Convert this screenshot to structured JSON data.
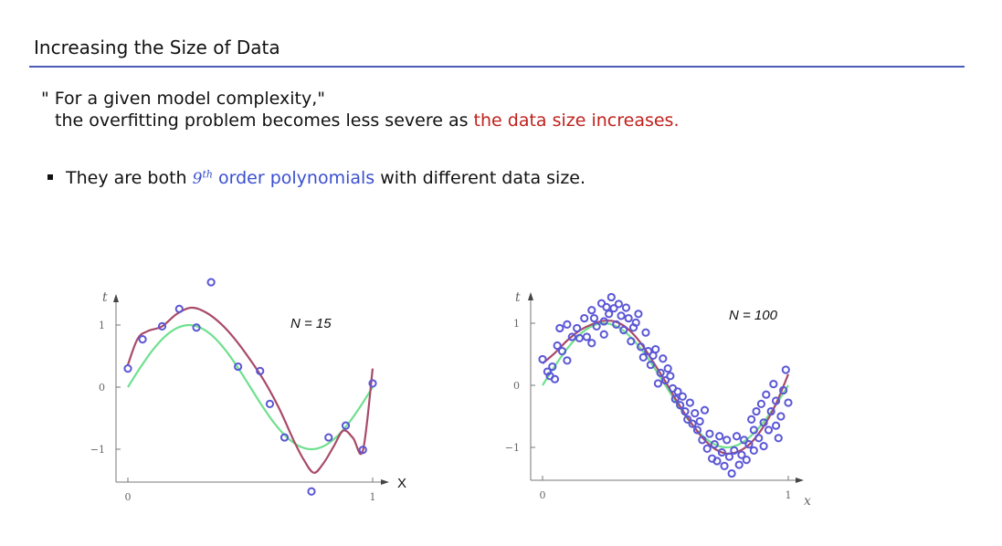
{
  "slide": {
    "title": "Increasing the Size of Data",
    "quote_line1": "\" For a given model complexity,\"",
    "quote_line2_pre": "the overfitting problem becomes less severe as ",
    "quote_line2_red": "the data size increases.",
    "bullet_pre": "They are both ",
    "bullet_order_base": "9",
    "bullet_order_sup": "th",
    "bullet_blue": "order polynomials",
    "bullet_post": " with different data size."
  },
  "colors": {
    "title_rule": "#4a5bb8",
    "red": "#c0211c",
    "blue": "#3a4fcf",
    "point": "#5b57d6",
    "true_curve": "#6fe08e",
    "fit_curve": "#a84a68"
  },
  "chart_data": [
    {
      "type": "scatter",
      "label": "N = 15",
      "xlabel": "X",
      "ylabel": "t",
      "xticks": [
        "0",
        "1"
      ],
      "yticks": [
        "1",
        "0",
        "−1"
      ],
      "xlim": [
        -0.05,
        1.1
      ],
      "ylim": [
        -1.5,
        1.6
      ],
      "points": [
        {
          "x": 0.0,
          "y": 0.3
        },
        {
          "x": 0.06,
          "y": 0.77
        },
        {
          "x": 0.14,
          "y": 0.98
        },
        {
          "x": 0.21,
          "y": 1.26
        },
        {
          "x": 0.28,
          "y": 0.96
        },
        {
          "x": 0.34,
          "y": 1.69
        },
        {
          "x": 0.45,
          "y": 0.33
        },
        {
          "x": 0.54,
          "y": 0.26
        },
        {
          "x": 0.58,
          "y": -0.27
        },
        {
          "x": 0.64,
          "y": -0.81
        },
        {
          "x": 0.75,
          "y": -1.68
        },
        {
          "x": 0.82,
          "y": -0.81
        },
        {
          "x": 0.89,
          "y": -0.62
        },
        {
          "x": 0.96,
          "y": -1.01
        },
        {
          "x": 1.0,
          "y": 0.06
        }
      ],
      "series": [
        {
          "name": "",
          "x": [
            0,
            0.05,
            0.1,
            0.15,
            0.2,
            0.25,
            0.3,
            0.35,
            0.4,
            0.45,
            0.5,
            0.55,
            0.6,
            0.65,
            0.7,
            0.75,
            0.8,
            0.85,
            0.9,
            0.95,
            1.0
          ],
          "values": [
            0.0,
            0.31,
            0.59,
            0.81,
            0.95,
            1.0,
            0.95,
            0.81,
            0.59,
            0.31,
            0.0,
            -0.31,
            -0.59,
            -0.81,
            -0.95,
            -1.0,
            -0.95,
            -0.81,
            -0.59,
            -0.31,
            0.0
          ]
        },
        {
          "name": "",
          "x": [
            0,
            0.04,
            0.08,
            0.14,
            0.2,
            0.26,
            0.32,
            0.38,
            0.44,
            0.5,
            0.56,
            0.62,
            0.68,
            0.72,
            0.76,
            0.8,
            0.84,
            0.88,
            0.92,
            0.96,
            1.0
          ],
          "values": [
            0.36,
            0.78,
            0.9,
            0.98,
            1.18,
            1.28,
            1.2,
            1.02,
            0.76,
            0.44,
            0.08,
            -0.36,
            -0.88,
            -1.18,
            -1.38,
            -1.22,
            -0.96,
            -0.7,
            -0.82,
            -1.02,
            0.3
          ]
        }
      ]
    },
    {
      "type": "scatter",
      "label": "N = 100",
      "xlabel": "X",
      "ylabel": "t",
      "xticks": [
        "0",
        "1"
      ],
      "yticks": [
        "1",
        "0",
        "−1"
      ],
      "xlim": [
        -0.05,
        1.1
      ],
      "ylim": [
        -1.5,
        1.6
      ],
      "points": [
        {
          "x": 0.0,
          "y": 0.42
        },
        {
          "x": 0.02,
          "y": 0.22
        },
        {
          "x": 0.03,
          "y": 0.15
        },
        {
          "x": 0.04,
          "y": 0.3
        },
        {
          "x": 0.06,
          "y": 0.64
        },
        {
          "x": 0.07,
          "y": 0.92
        },
        {
          "x": 0.08,
          "y": 0.55
        },
        {
          "x": 0.1,
          "y": 0.4
        },
        {
          "x": 0.12,
          "y": 0.78
        },
        {
          "x": 0.14,
          "y": 0.92
        },
        {
          "x": 0.15,
          "y": 0.76
        },
        {
          "x": 0.17,
          "y": 1.08
        },
        {
          "x": 0.18,
          "y": 0.78
        },
        {
          "x": 0.2,
          "y": 1.21
        },
        {
          "x": 0.21,
          "y": 1.08
        },
        {
          "x": 0.22,
          "y": 0.95
        },
        {
          "x": 0.24,
          "y": 1.32
        },
        {
          "x": 0.25,
          "y": 1.03
        },
        {
          "x": 0.26,
          "y": 1.26
        },
        {
          "x": 0.27,
          "y": 1.15
        },
        {
          "x": 0.28,
          "y": 1.42
        },
        {
          "x": 0.29,
          "y": 1.24
        },
        {
          "x": 0.3,
          "y": 0.98
        },
        {
          "x": 0.31,
          "y": 1.31
        },
        {
          "x": 0.32,
          "y": 1.12
        },
        {
          "x": 0.33,
          "y": 0.89
        },
        {
          "x": 0.34,
          "y": 1.25
        },
        {
          "x": 0.35,
          "y": 1.08
        },
        {
          "x": 0.36,
          "y": 0.71
        },
        {
          "x": 0.37,
          "y": 0.93
        },
        {
          "x": 0.38,
          "y": 1.01
        },
        {
          "x": 0.39,
          "y": 1.15
        },
        {
          "x": 0.4,
          "y": 0.62
        },
        {
          "x": 0.41,
          "y": 0.45
        },
        {
          "x": 0.42,
          "y": 0.85
        },
        {
          "x": 0.43,
          "y": 0.55
        },
        {
          "x": 0.44,
          "y": 0.33
        },
        {
          "x": 0.45,
          "y": 0.48
        },
        {
          "x": 0.46,
          "y": 0.58
        },
        {
          "x": 0.47,
          "y": 0.03
        },
        {
          "x": 0.48,
          "y": 0.2
        },
        {
          "x": 0.49,
          "y": 0.43
        },
        {
          "x": 0.5,
          "y": 0.08
        },
        {
          "x": 0.51,
          "y": 0.27
        },
        {
          "x": 0.52,
          "y": 0.15
        },
        {
          "x": 0.53,
          "y": -0.05
        },
        {
          "x": 0.54,
          "y": -0.22
        },
        {
          "x": 0.55,
          "y": -0.1
        },
        {
          "x": 0.56,
          "y": -0.32
        },
        {
          "x": 0.57,
          "y": -0.18
        },
        {
          "x": 0.58,
          "y": -0.42
        },
        {
          "x": 0.59,
          "y": -0.55
        },
        {
          "x": 0.6,
          "y": -0.28
        },
        {
          "x": 0.61,
          "y": -0.62
        },
        {
          "x": 0.62,
          "y": -0.45
        },
        {
          "x": 0.63,
          "y": -0.72
        },
        {
          "x": 0.64,
          "y": -0.58
        },
        {
          "x": 0.65,
          "y": -0.88
        },
        {
          "x": 0.66,
          "y": -0.4
        },
        {
          "x": 0.67,
          "y": -1.02
        },
        {
          "x": 0.68,
          "y": -0.78
        },
        {
          "x": 0.69,
          "y": -1.18
        },
        {
          "x": 0.7,
          "y": -0.95
        },
        {
          "x": 0.71,
          "y": -1.22
        },
        {
          "x": 0.72,
          "y": -0.82
        },
        {
          "x": 0.73,
          "y": -1.08
        },
        {
          "x": 0.74,
          "y": -1.3
        },
        {
          "x": 0.75,
          "y": -0.88
        },
        {
          "x": 0.76,
          "y": -1.15
        },
        {
          "x": 0.77,
          "y": -1.42
        },
        {
          "x": 0.78,
          "y": -1.05
        },
        {
          "x": 0.79,
          "y": -0.82
        },
        {
          "x": 0.8,
          "y": -1.28
        },
        {
          "x": 0.81,
          "y": -1.12
        },
        {
          "x": 0.82,
          "y": -0.88
        },
        {
          "x": 0.83,
          "y": -1.2
        },
        {
          "x": 0.84,
          "y": -0.95
        },
        {
          "x": 0.85,
          "y": -0.55
        },
        {
          "x": 0.86,
          "y": -0.72
        },
        {
          "x": 0.87,
          "y": -0.42
        },
        {
          "x": 0.88,
          "y": -0.85
        },
        {
          "x": 0.89,
          "y": -0.3
        },
        {
          "x": 0.9,
          "y": -0.6
        },
        {
          "x": 0.91,
          "y": -0.15
        },
        {
          "x": 0.92,
          "y": -0.72
        },
        {
          "x": 0.93,
          "y": -0.42
        },
        {
          "x": 0.94,
          "y": 0.02
        },
        {
          "x": 0.95,
          "y": -0.25
        },
        {
          "x": 0.96,
          "y": -0.85
        },
        {
          "x": 0.97,
          "y": -0.5
        },
        {
          "x": 0.98,
          "y": -0.08
        },
        {
          "x": 0.99,
          "y": 0.25
        },
        {
          "x": 1.0,
          "y": -0.28
        },
        {
          "x": 0.95,
          "y": -0.65
        },
        {
          "x": 0.9,
          "y": -0.98
        },
        {
          "x": 0.86,
          "y": -1.05
        },
        {
          "x": 0.2,
          "y": 0.68
        },
        {
          "x": 0.25,
          "y": 0.82
        },
        {
          "x": 0.1,
          "y": 0.98
        },
        {
          "x": 0.05,
          "y": 0.1
        }
      ],
      "series": [
        {
          "name": "",
          "x": [
            0,
            0.05,
            0.1,
            0.15,
            0.2,
            0.25,
            0.3,
            0.35,
            0.4,
            0.45,
            0.5,
            0.55,
            0.6,
            0.65,
            0.7,
            0.75,
            0.8,
            0.85,
            0.9,
            0.95,
            1.0
          ],
          "values": [
            0.0,
            0.31,
            0.59,
            0.81,
            0.95,
            1.0,
            0.95,
            0.81,
            0.59,
            0.31,
            0.0,
            -0.31,
            -0.59,
            -0.81,
            -0.95,
            -1.0,
            -0.95,
            -0.81,
            -0.59,
            -0.31,
            0.0
          ]
        },
        {
          "name": "",
          "x": [
            0,
            0.05,
            0.1,
            0.15,
            0.2,
            0.25,
            0.3,
            0.35,
            0.4,
            0.45,
            0.5,
            0.55,
            0.6,
            0.65,
            0.7,
            0.75,
            0.8,
            0.85,
            0.9,
            0.95,
            1.0
          ],
          "values": [
            0.35,
            0.52,
            0.72,
            0.88,
            0.98,
            1.04,
            1.02,
            0.9,
            0.68,
            0.38,
            0.06,
            -0.28,
            -0.58,
            -0.84,
            -1.02,
            -1.1,
            -1.06,
            -0.92,
            -0.66,
            -0.3,
            0.18
          ]
        }
      ]
    }
  ]
}
